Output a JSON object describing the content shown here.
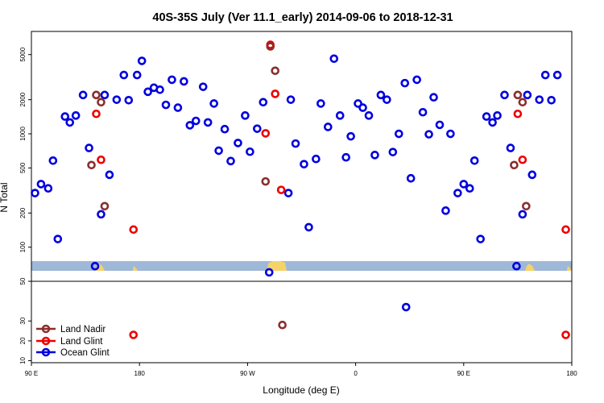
{
  "chart_data": {
    "type": "scatter",
    "title": "40S-35S July (Ver 11.1_early)   2014-09-06 to 2018-12-31",
    "xlabel": "Longitude (deg E)",
    "ylabel": "N Total",
    "x_ticks": [
      {
        "value": 90,
        "label": "90 E"
      },
      {
        "value": 180,
        "label": "180"
      },
      {
        "value": 270,
        "label": "90 W"
      },
      {
        "value": 360,
        "label": "0"
      },
      {
        "value": 450,
        "label": "90 E"
      },
      {
        "value": 540,
        "label": "180"
      }
    ],
    "xlim": [
      90,
      540
    ],
    "top_panel": {
      "scale": "log",
      "ylim": [
        50,
        8000
      ],
      "y_ticks": [
        {
          "value": 50,
          "label": "50"
        },
        {
          "value": 100,
          "label": "100"
        },
        {
          "value": 200,
          "label": "200"
        },
        {
          "value": 500,
          "label": "500"
        },
        {
          "value": 1000,
          "label": "1000"
        },
        {
          "value": 2000,
          "label": "2000"
        },
        {
          "value": 5000,
          "label": "5000"
        }
      ]
    },
    "bottom_panel": {
      "scale": "linear",
      "ylim": [
        9,
        50
      ],
      "y_ticks": [
        {
          "value": 10,
          "label": "10"
        },
        {
          "value": 20,
          "label": "20"
        },
        {
          "value": 30,
          "label": "30"
        }
      ]
    },
    "legend": {
      "placement": "bottom-left",
      "entries": [
        {
          "name": "Land Nadir",
          "color": "#8b2e2e"
        },
        {
          "name": "Land Glint",
          "color": "#ee0000"
        },
        {
          "name": "Ocean Glint",
          "color": "#0000e0"
        }
      ]
    },
    "series": [
      {
        "name": "Ocean Glint",
        "color": "#0000e0",
        "points": [
          {
            "x": 93,
            "y": 300
          },
          {
            "x": 98,
            "y": 360
          },
          {
            "x": 104,
            "y": 330
          },
          {
            "x": 108,
            "y": 580
          },
          {
            "x": 112,
            "y": 118
          },
          {
            "x": 118,
            "y": 1420
          },
          {
            "x": 122,
            "y": 1260
          },
          {
            "x": 127,
            "y": 1450
          },
          {
            "x": 133,
            "y": 2200
          },
          {
            "x": 138,
            "y": 750
          },
          {
            "x": 143,
            "y": 68
          },
          {
            "x": 148,
            "y": 195
          },
          {
            "x": 151,
            "y": 2200
          },
          {
            "x": 155,
            "y": 435
          },
          {
            "x": 161,
            "y": 2000
          },
          {
            "x": 167,
            "y": 3300
          },
          {
            "x": 171,
            "y": 1980
          },
          {
            "x": 178,
            "y": 3300
          },
          {
            "x": 182,
            "y": 4400
          },
          {
            "x": 187,
            "y": 2350
          },
          {
            "x": 192,
            "y": 2550
          },
          {
            "x": 197,
            "y": 2450
          },
          {
            "x": 202,
            "y": 1800
          },
          {
            "x": 207,
            "y": 3000
          },
          {
            "x": 212,
            "y": 1700
          },
          {
            "x": 217,
            "y": 2900
          },
          {
            "x": 222,
            "y": 1190
          },
          {
            "x": 227,
            "y": 1300
          },
          {
            "x": 233,
            "y": 2600
          },
          {
            "x": 237,
            "y": 1260
          },
          {
            "x": 242,
            "y": 1850
          },
          {
            "x": 246,
            "y": 710
          },
          {
            "x": 251,
            "y": 1100
          },
          {
            "x": 256,
            "y": 575
          },
          {
            "x": 262,
            "y": 830
          },
          {
            "x": 268,
            "y": 1450
          },
          {
            "x": 272,
            "y": 695
          },
          {
            "x": 278,
            "y": 1110
          },
          {
            "x": 283,
            "y": 1900
          },
          {
            "x": 288,
            "y": 60
          },
          {
            "x": 304,
            "y": 300
          },
          {
            "x": 306,
            "y": 2000
          },
          {
            "x": 310,
            "y": 820
          },
          {
            "x": 317,
            "y": 540
          },
          {
            "x": 321,
            "y": 150
          },
          {
            "x": 327,
            "y": 600
          },
          {
            "x": 331,
            "y": 1850
          },
          {
            "x": 337,
            "y": 1150
          },
          {
            "x": 342,
            "y": 4600
          },
          {
            "x": 347,
            "y": 1450
          },
          {
            "x": 352,
            "y": 620
          },
          {
            "x": 356,
            "y": 950
          },
          {
            "x": 362,
            "y": 1850
          },
          {
            "x": 366,
            "y": 1700
          },
          {
            "x": 371,
            "y": 1450
          },
          {
            "x": 376,
            "y": 650
          },
          {
            "x": 381,
            "y": 2200
          },
          {
            "x": 386,
            "y": 2000
          },
          {
            "x": 391,
            "y": 690
          },
          {
            "x": 396,
            "y": 1000
          },
          {
            "x": 401,
            "y": 2800
          },
          {
            "x": 402,
            "y": 37
          },
          {
            "x": 406,
            "y": 405
          },
          {
            "x": 411,
            "y": 3000
          },
          {
            "x": 416,
            "y": 1550
          },
          {
            "x": 421,
            "y": 990
          },
          {
            "x": 425,
            "y": 2100
          },
          {
            "x": 430,
            "y": 1200
          },
          {
            "x": 435,
            "y": 210
          },
          {
            "x": 439,
            "y": 1000
          },
          {
            "x": 445,
            "y": 300
          },
          {
            "x": 450,
            "y": 360
          },
          {
            "x": 455,
            "y": 330
          },
          {
            "x": 459,
            "y": 580
          },
          {
            "x": 464,
            "y": 118
          },
          {
            "x": 469,
            "y": 1420
          },
          {
            "x": 474,
            "y": 1260
          },
          {
            "x": 478,
            "y": 1450
          },
          {
            "x": 484,
            "y": 2200
          },
          {
            "x": 489,
            "y": 750
          },
          {
            "x": 494,
            "y": 68
          },
          {
            "x": 499,
            "y": 195
          },
          {
            "x": 503,
            "y": 2200
          },
          {
            "x": 507,
            "y": 435
          },
          {
            "x": 513,
            "y": 2000
          },
          {
            "x": 518,
            "y": 3300
          },
          {
            "x": 523,
            "y": 1980
          },
          {
            "x": 528,
            "y": 3300
          }
        ]
      },
      {
        "name": "Land Glint",
        "color": "#ee0000",
        "points": [
          {
            "x": 144,
            "y": 1500
          },
          {
            "x": 148,
            "y": 590
          },
          {
            "x": 175,
            "y": 143
          },
          {
            "x": 175,
            "y": 23
          },
          {
            "x": 285,
            "y": 1010
          },
          {
            "x": 289,
            "y": 6100
          },
          {
            "x": 293,
            "y": 2250
          },
          {
            "x": 298,
            "y": 320
          },
          {
            "x": 495,
            "y": 1500
          },
          {
            "x": 499,
            "y": 590
          },
          {
            "x": 535,
            "y": 143
          },
          {
            "x": 535,
            "y": 23
          }
        ]
      },
      {
        "name": "Land Nadir",
        "color": "#8b2e2e",
        "points": [
          {
            "x": 140,
            "y": 530
          },
          {
            "x": 144,
            "y": 2200
          },
          {
            "x": 148,
            "y": 1900
          },
          {
            "x": 151,
            "y": 230
          },
          {
            "x": 285,
            "y": 380
          },
          {
            "x": 289,
            "y": 5900
          },
          {
            "x": 293,
            "y": 3600
          },
          {
            "x": 299,
            "y": 28
          },
          {
            "x": 492,
            "y": 530
          },
          {
            "x": 495,
            "y": 2200
          },
          {
            "x": 499,
            "y": 1900
          },
          {
            "x": 502,
            "y": 230
          }
        ]
      }
    ]
  }
}
